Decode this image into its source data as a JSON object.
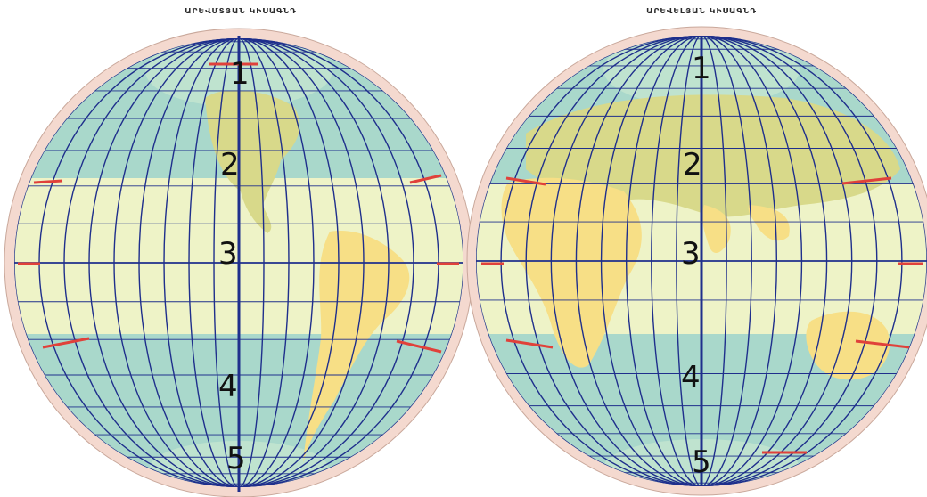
{
  "titles": {
    "west": "ԱՐԵՎՄՏՅԱՆ ԿԻՍԱԳՆԴ",
    "east": "ԱՐԵՎԵԼՅԱՆ ԿԻՍԱԳՆԴ"
  },
  "zone_labels": [
    "1",
    "2",
    "3",
    "4",
    "5"
  ],
  "colors": {
    "polar_zone": "#bfe3cf",
    "temperate_zone": "#a9d8cb",
    "tropical_zone": "#eef3c7",
    "land": "#f7df86",
    "land_north": "#d8d98a",
    "rim": "#f4d9cf",
    "graticule": "#1f2f8c",
    "tropic_marker": "#e0413a"
  },
  "icons": [
    "west-hemisphere-globe",
    "east-hemisphere-globe"
  ]
}
